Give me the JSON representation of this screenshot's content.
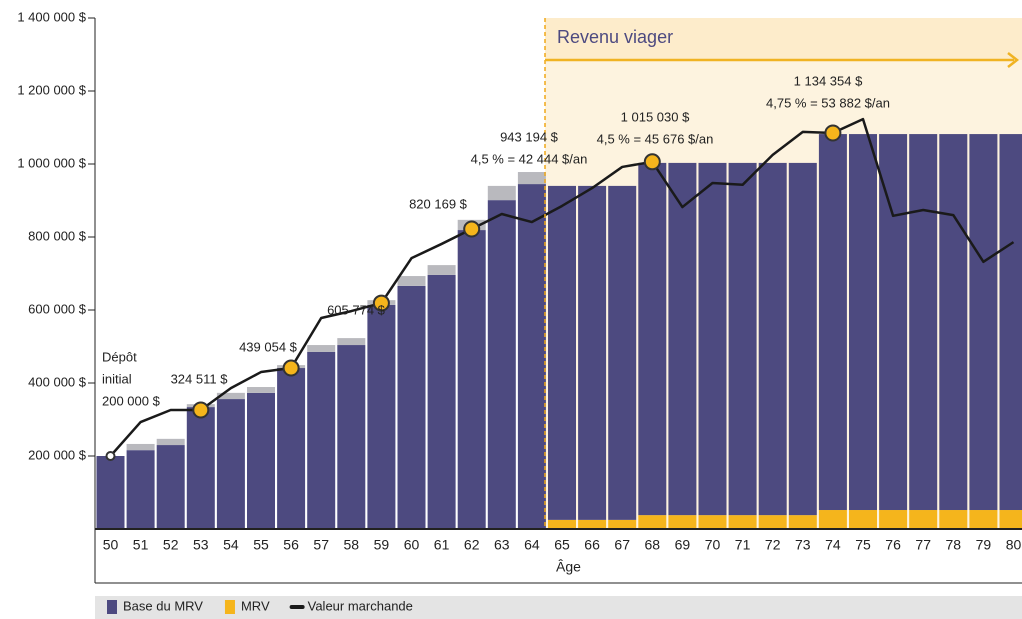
{
  "chart_data": {
    "type": "bar",
    "x_label": "Âge",
    "region_label": "Revenu viager",
    "categories": [
      50,
      51,
      52,
      53,
      54,
      55,
      56,
      57,
      58,
      59,
      60,
      61,
      62,
      63,
      64,
      65,
      66,
      67,
      68,
      69,
      70,
      71,
      72,
      73,
      74,
      75,
      76,
      77,
      78,
      79,
      80
    ],
    "ylim": [
      0,
      1400000
    ],
    "yticks": [
      {
        "value": 200000,
        "label": "200 000 $"
      },
      {
        "value": 400000,
        "label": "400 000 $"
      },
      {
        "value": 600000,
        "label": "600 000 $"
      },
      {
        "value": 800000,
        "label": "800 000 $"
      },
      {
        "value": 1000000,
        "label": "1 000 000 $"
      },
      {
        "value": 1200000,
        "label": "1 200 000 $"
      },
      {
        "value": 1400000,
        "label": "1 400 000 $"
      }
    ],
    "series": [
      {
        "name": "Base du MRV",
        "color": "#4d4a80",
        "values": [
          200000,
          216000,
          230000,
          334000,
          356000,
          373000,
          441000,
          485000,
          504000,
          614000,
          666000,
          696000,
          819000,
          901000,
          945000,
          915000,
          915000,
          915000,
          965000,
          965000,
          965000,
          965000,
          965000,
          965000,
          1030000,
          1030000,
          1030000,
          1030000,
          1030000,
          1030000,
          1030000
        ]
      },
      {
        "name": "MRV",
        "color": "#f5b51c",
        "values": [
          null,
          null,
          null,
          null,
          null,
          null,
          null,
          null,
          null,
          null,
          null,
          null,
          null,
          null,
          null,
          25000,
          25000,
          25000,
          38000,
          38000,
          38000,
          38000,
          38000,
          38000,
          52000,
          52000,
          52000,
          52000,
          52000,
          52000,
          52000
        ]
      },
      {
        "color": "#b9b9be",
        "values": [
          null,
          17000,
          17000,
          8000,
          17000,
          16000,
          8000,
          19000,
          19000,
          13000,
          27000,
          27000,
          28000,
          39000,
          33000,
          null,
          null,
          null,
          null,
          null,
          null,
          null,
          null,
          null,
          null,
          null,
          null,
          null,
          null,
          null,
          null
        ]
      },
      {
        "name": "Valeur marchande",
        "type": "line",
        "color": "#1a1a1a",
        "values": [
          200000,
          293000,
          326000,
          326000,
          386000,
          430000,
          441000,
          578000,
          597000,
          619000,
          742000,
          781000,
          822000,
          863000,
          841000,
          885000,
          934000,
          992000,
          1006000,
          882000,
          948000,
          943000,
          1025000,
          1088000,
          1085000,
          1123000,
          858000,
          874000,
          860000,
          732000,
          786000
        ]
      }
    ],
    "annotations": [
      [
        "Dépôt",
        "initial",
        "200 000 $"
      ],
      [
        "324 511 $"
      ],
      [
        "439 054 $"
      ],
      [
        "605 774 $"
      ],
      [
        "820 169 $"
      ],
      [
        "943 194 $",
        "4,5 % = 42 444 $/an"
      ],
      [
        "1 015 030 $",
        "4,5 % = 45 676 $/an"
      ],
      [
        "1 134 354 $",
        "4,75 % = 53 882 $/an"
      ]
    ]
  }
}
